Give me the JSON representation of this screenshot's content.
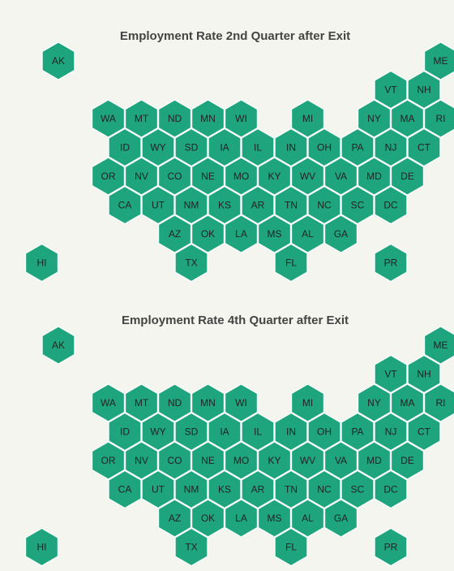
{
  "colors": {
    "background": "#f5f5f0",
    "hex_fill": "#1fa57d",
    "hex_stroke": "#ffffff",
    "label": "#222222",
    "title": "#444444"
  },
  "maps": [
    {
      "title": "Employment Rate 2nd Quarter after Exit",
      "states": [
        {
          "abbr": "AK",
          "row": 0,
          "col": 0
        },
        {
          "abbr": "ME",
          "row": 0,
          "col": 11.5
        },
        {
          "abbr": "VT",
          "row": 1,
          "col": 10
        },
        {
          "abbr": "NH",
          "row": 1,
          "col": 11
        },
        {
          "abbr": "WA",
          "row": 2,
          "col": 1.5
        },
        {
          "abbr": "MT",
          "row": 2,
          "col": 2.5
        },
        {
          "abbr": "ND",
          "row": 2,
          "col": 3.5
        },
        {
          "abbr": "MN",
          "row": 2,
          "col": 4.5
        },
        {
          "abbr": "WI",
          "row": 2,
          "col": 5.5
        },
        {
          "abbr": "MI",
          "row": 2,
          "col": 7.5
        },
        {
          "abbr": "NY",
          "row": 2,
          "col": 9.5
        },
        {
          "abbr": "MA",
          "row": 2,
          "col": 10.5
        },
        {
          "abbr": "RI",
          "row": 2,
          "col": 11.5
        },
        {
          "abbr": "ID",
          "row": 3,
          "col": 2
        },
        {
          "abbr": "WY",
          "row": 3,
          "col": 3
        },
        {
          "abbr": "SD",
          "row": 3,
          "col": 4
        },
        {
          "abbr": "IA",
          "row": 3,
          "col": 5
        },
        {
          "abbr": "IL",
          "row": 3,
          "col": 6
        },
        {
          "abbr": "IN",
          "row": 3,
          "col": 7
        },
        {
          "abbr": "OH",
          "row": 3,
          "col": 8
        },
        {
          "abbr": "PA",
          "row": 3,
          "col": 9
        },
        {
          "abbr": "NJ",
          "row": 3,
          "col": 10
        },
        {
          "abbr": "CT",
          "row": 3,
          "col": 11
        },
        {
          "abbr": "OR",
          "row": 4,
          "col": 1.5
        },
        {
          "abbr": "NV",
          "row": 4,
          "col": 2.5
        },
        {
          "abbr": "CO",
          "row": 4,
          "col": 3.5
        },
        {
          "abbr": "NE",
          "row": 4,
          "col": 4.5
        },
        {
          "abbr": "MO",
          "row": 4,
          "col": 5.5
        },
        {
          "abbr": "KY",
          "row": 4,
          "col": 6.5
        },
        {
          "abbr": "WV",
          "row": 4,
          "col": 7.5
        },
        {
          "abbr": "VA",
          "row": 4,
          "col": 8.5
        },
        {
          "abbr": "MD",
          "row": 4,
          "col": 9.5
        },
        {
          "abbr": "DE",
          "row": 4,
          "col": 10.5
        },
        {
          "abbr": "CA",
          "row": 5,
          "col": 2
        },
        {
          "abbr": "UT",
          "row": 5,
          "col": 3
        },
        {
          "abbr": "NM",
          "row": 5,
          "col": 4
        },
        {
          "abbr": "KS",
          "row": 5,
          "col": 5
        },
        {
          "abbr": "AR",
          "row": 5,
          "col": 6
        },
        {
          "abbr": "TN",
          "row": 5,
          "col": 7
        },
        {
          "abbr": "NC",
          "row": 5,
          "col": 8
        },
        {
          "abbr": "SC",
          "row": 5,
          "col": 9
        },
        {
          "abbr": "DC",
          "row": 5,
          "col": 10
        },
        {
          "abbr": "AZ",
          "row": 6,
          "col": 3.5
        },
        {
          "abbr": "OK",
          "row": 6,
          "col": 4.5
        },
        {
          "abbr": "LA",
          "row": 6,
          "col": 5.5
        },
        {
          "abbr": "MS",
          "row": 6,
          "col": 6.5
        },
        {
          "abbr": "AL",
          "row": 6,
          "col": 7.5
        },
        {
          "abbr": "GA",
          "row": 6,
          "col": 8.5
        },
        {
          "abbr": "HI",
          "row": 7,
          "col": -0.5
        },
        {
          "abbr": "TX",
          "row": 7,
          "col": 4
        },
        {
          "abbr": "FL",
          "row": 7,
          "col": 7
        },
        {
          "abbr": "PR",
          "row": 7,
          "col": 10
        }
      ]
    },
    {
      "title": "Employment Rate 4th Quarter after Exit",
      "states": [
        {
          "abbr": "AK",
          "row": 0,
          "col": 0
        },
        {
          "abbr": "ME",
          "row": 0,
          "col": 11.5
        },
        {
          "abbr": "VT",
          "row": 1,
          "col": 10
        },
        {
          "abbr": "NH",
          "row": 1,
          "col": 11
        },
        {
          "abbr": "WA",
          "row": 2,
          "col": 1.5
        },
        {
          "abbr": "MT",
          "row": 2,
          "col": 2.5
        },
        {
          "abbr": "ND",
          "row": 2,
          "col": 3.5
        },
        {
          "abbr": "MN",
          "row": 2,
          "col": 4.5
        },
        {
          "abbr": "WI",
          "row": 2,
          "col": 5.5
        },
        {
          "abbr": "MI",
          "row": 2,
          "col": 7.5
        },
        {
          "abbr": "NY",
          "row": 2,
          "col": 9.5
        },
        {
          "abbr": "MA",
          "row": 2,
          "col": 10.5
        },
        {
          "abbr": "RI",
          "row": 2,
          "col": 11.5
        },
        {
          "abbr": "ID",
          "row": 3,
          "col": 2
        },
        {
          "abbr": "WY",
          "row": 3,
          "col": 3
        },
        {
          "abbr": "SD",
          "row": 3,
          "col": 4
        },
        {
          "abbr": "IA",
          "row": 3,
          "col": 5
        },
        {
          "abbr": "IL",
          "row": 3,
          "col": 6
        },
        {
          "abbr": "IN",
          "row": 3,
          "col": 7
        },
        {
          "abbr": "OH",
          "row": 3,
          "col": 8
        },
        {
          "abbr": "PA",
          "row": 3,
          "col": 9
        },
        {
          "abbr": "NJ",
          "row": 3,
          "col": 10
        },
        {
          "abbr": "CT",
          "row": 3,
          "col": 11
        },
        {
          "abbr": "OR",
          "row": 4,
          "col": 1.5
        },
        {
          "abbr": "NV",
          "row": 4,
          "col": 2.5
        },
        {
          "abbr": "CO",
          "row": 4,
          "col": 3.5
        },
        {
          "abbr": "NE",
          "row": 4,
          "col": 4.5
        },
        {
          "abbr": "MO",
          "row": 4,
          "col": 5.5
        },
        {
          "abbr": "KY",
          "row": 4,
          "col": 6.5
        },
        {
          "abbr": "WV",
          "row": 4,
          "col": 7.5
        },
        {
          "abbr": "VA",
          "row": 4,
          "col": 8.5
        },
        {
          "abbr": "MD",
          "row": 4,
          "col": 9.5
        },
        {
          "abbr": "DE",
          "row": 4,
          "col": 10.5
        },
        {
          "abbr": "CA",
          "row": 5,
          "col": 2
        },
        {
          "abbr": "UT",
          "row": 5,
          "col": 3
        },
        {
          "abbr": "NM",
          "row": 5,
          "col": 4
        },
        {
          "abbr": "KS",
          "row": 5,
          "col": 5
        },
        {
          "abbr": "AR",
          "row": 5,
          "col": 6
        },
        {
          "abbr": "TN",
          "row": 5,
          "col": 7
        },
        {
          "abbr": "NC",
          "row": 5,
          "col": 8
        },
        {
          "abbr": "SC",
          "row": 5,
          "col": 9
        },
        {
          "abbr": "DC",
          "row": 5,
          "col": 10
        },
        {
          "abbr": "AZ",
          "row": 6,
          "col": 3.5
        },
        {
          "abbr": "OK",
          "row": 6,
          "col": 4.5
        },
        {
          "abbr": "LA",
          "row": 6,
          "col": 5.5
        },
        {
          "abbr": "MS",
          "row": 6,
          "col": 6.5
        },
        {
          "abbr": "AL",
          "row": 6,
          "col": 7.5
        },
        {
          "abbr": "GA",
          "row": 6,
          "col": 8.5
        },
        {
          "abbr": "HI",
          "row": 7,
          "col": -0.5
        },
        {
          "abbr": "TX",
          "row": 7,
          "col": 4
        },
        {
          "abbr": "FL",
          "row": 7,
          "col": 7
        },
        {
          "abbr": "PR",
          "row": 7,
          "col": 10
        }
      ]
    }
  ]
}
